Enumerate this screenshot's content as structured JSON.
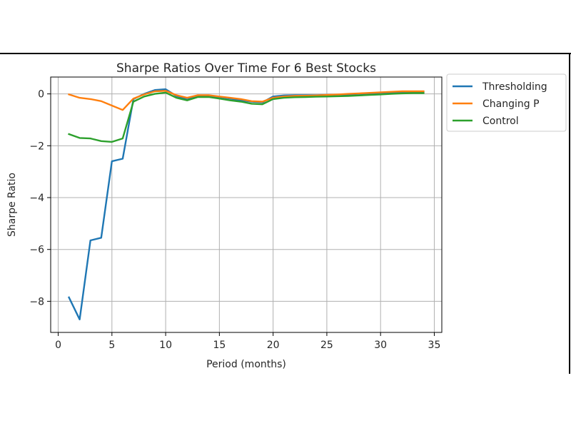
{
  "chart_data": {
    "type": "line",
    "title": "Sharpe Ratios Over Time For 6 Best Stocks",
    "xlabel": "Period (months)",
    "ylabel": "Sharpe Ratio",
    "xlim": [
      -0.7,
      35.7
    ],
    "ylim": [
      -9.2,
      0.65
    ],
    "xticks": [
      0,
      5,
      10,
      15,
      20,
      25,
      30,
      35
    ],
    "yticks": [
      0,
      -2,
      -4,
      -6,
      -8
    ],
    "grid": true,
    "legend_position": "outside upper-right",
    "x": [
      1,
      2,
      3,
      4,
      5,
      6,
      7,
      8,
      9,
      10,
      11,
      12,
      13,
      14,
      15,
      16,
      17,
      18,
      19,
      20,
      21,
      22,
      23,
      24,
      25,
      26,
      27,
      28,
      29,
      30,
      31,
      32,
      33,
      34
    ],
    "series": [
      {
        "name": "Thresholding",
        "color": "#1f77b4",
        "values": [
          -7.85,
          -8.7,
          -5.65,
          -5.55,
          -2.6,
          -2.5,
          -0.2,
          0.0,
          0.15,
          0.18,
          -0.08,
          -0.22,
          -0.08,
          -0.08,
          -0.12,
          -0.18,
          -0.25,
          -0.3,
          -0.33,
          -0.1,
          -0.06,
          -0.05,
          -0.05,
          -0.05,
          -0.04,
          -0.03,
          -0.02,
          0.0,
          0.02,
          0.04,
          0.05,
          0.07,
          0.08,
          0.08
        ]
      },
      {
        "name": "Changing P",
        "color": "#ff7f0e",
        "values": [
          -0.02,
          -0.15,
          -0.2,
          -0.28,
          -0.45,
          -0.62,
          -0.18,
          -0.02,
          0.1,
          0.12,
          -0.05,
          -0.15,
          -0.05,
          -0.05,
          -0.1,
          -0.15,
          -0.2,
          -0.28,
          -0.3,
          -0.15,
          -0.1,
          -0.08,
          -0.07,
          -0.06,
          -0.04,
          -0.02,
          0.0,
          0.02,
          0.04,
          0.06,
          0.08,
          0.1,
          0.1,
          0.1
        ]
      },
      {
        "name": "Control",
        "color": "#2ca02c",
        "values": [
          -1.55,
          -1.7,
          -1.72,
          -1.82,
          -1.85,
          -1.72,
          -0.3,
          -0.1,
          0.0,
          0.05,
          -0.15,
          -0.25,
          -0.12,
          -0.12,
          -0.18,
          -0.25,
          -0.3,
          -0.38,
          -0.4,
          -0.2,
          -0.15,
          -0.13,
          -0.12,
          -0.11,
          -0.1,
          -0.09,
          -0.08,
          -0.06,
          -0.04,
          -0.02,
          0.0,
          0.02,
          0.03,
          0.03
        ]
      }
    ]
  }
}
